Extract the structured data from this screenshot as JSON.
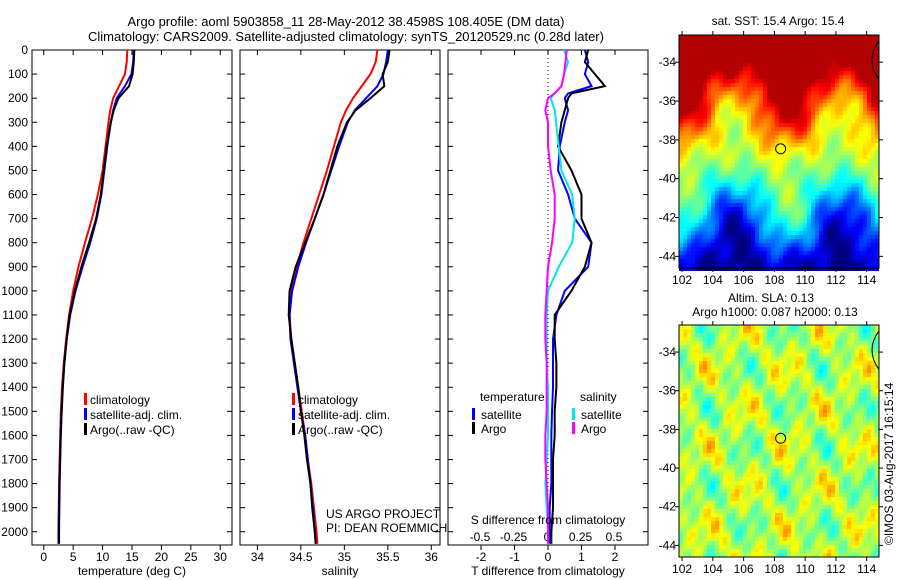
{
  "title": {
    "line1": "Argo profile: aoml 5903858_11 28-May-2012 38.4598S 108.405E (DM data)",
    "line2": "Climatology: CARS2009. Satellite-adjusted climatology: synTS_20120529.nc (0.28d later)"
  },
  "credits": {
    "line1": "US ARGO PROJECT",
    "line2": "PI: DEAN ROEMMICH",
    "stamp": "©IMOS 03-Aug-2017 16:15:14"
  },
  "colors": {
    "clim": "#ff0000",
    "sat": "#0000ff",
    "argo": "#000000",
    "sal_sat": "#00e5ee",
    "sal_argo": "#ff00ff"
  },
  "chart_data": [
    {
      "type": "line",
      "name": "temperature-profile",
      "xlabel": "temperature (deg C)",
      "xlim": [
        -2,
        32
      ],
      "xticks": [
        0,
        5,
        10,
        15,
        20,
        25,
        30
      ],
      "ylim": [
        0,
        2055
      ],
      "yticks": [
        0,
        100,
        200,
        300,
        400,
        500,
        600,
        700,
        800,
        900,
        1000,
        1100,
        1200,
        1300,
        1400,
        1500,
        1600,
        1700,
        1800,
        1900,
        2000
      ],
      "legend": [
        "climatology",
        "satellite-adj. clim.",
        "Argo(..raw -QC)"
      ],
      "depth": [
        0,
        50,
        100,
        150,
        200,
        250,
        300,
        400,
        500,
        600,
        700,
        800,
        900,
        1000,
        1100,
        1200,
        1300,
        1400,
        1500,
        1600,
        1700,
        1800,
        1900,
        2000,
        2050
      ],
      "series": [
        {
          "name": "climatology",
          "values": [
            14.2,
            14.1,
            13.8,
            12.8,
            11.8,
            11.3,
            11.0,
            10.5,
            10.0,
            9.2,
            8.2,
            7.0,
            5.9,
            5.0,
            4.3,
            3.8,
            3.4,
            3.1,
            2.9,
            2.8,
            2.7,
            2.6,
            2.55,
            2.5,
            2.5
          ]
        },
        {
          "name": "satellite-adj. clim.",
          "values": [
            15.3,
            15.2,
            14.9,
            13.8,
            12.4,
            11.8,
            11.4,
            10.8,
            10.3,
            9.8,
            9.0,
            7.9,
            6.6,
            5.4,
            4.5,
            3.9,
            3.5,
            3.2,
            3.0,
            2.85,
            2.75,
            2.65,
            2.6,
            2.5,
            2.5
          ]
        },
        {
          "name": "Argo(..raw -QC)",
          "values": [
            15.4,
            15.3,
            15.1,
            14.5,
            12.7,
            11.9,
            11.4,
            10.7,
            10.2,
            9.7,
            8.9,
            7.7,
            6.4,
            5.3,
            4.4,
            3.9,
            3.5,
            3.25,
            3.05,
            2.9,
            2.8,
            2.7,
            2.65,
            2.6,
            2.6
          ]
        }
      ]
    },
    {
      "type": "line",
      "name": "salinity-profile",
      "xlabel": "salinity",
      "xlim": [
        33.8,
        36.1
      ],
      "xticks": [
        34,
        34.5,
        35,
        35.5,
        36
      ],
      "ylim": [
        0,
        2055
      ],
      "legend": [
        "climatology",
        "satellite-adj. clim.",
        "Argo(..raw -QC)"
      ],
      "depth": [
        0,
        50,
        100,
        150,
        200,
        250,
        300,
        400,
        500,
        600,
        700,
        800,
        900,
        1000,
        1100,
        1200,
        1300,
        1400,
        1500,
        1600,
        1700,
        1800,
        1900,
        2000,
        2050
      ],
      "series": [
        {
          "name": "climatology",
          "values": [
            35.38,
            35.36,
            35.3,
            35.2,
            35.1,
            35.02,
            34.96,
            34.88,
            34.8,
            34.71,
            34.62,
            34.53,
            34.45,
            34.39,
            34.37,
            34.39,
            34.43,
            34.47,
            34.51,
            34.55,
            34.58,
            34.62,
            34.65,
            34.68,
            34.69
          ]
        },
        {
          "name": "satellite-adj. clim.",
          "values": [
            35.5,
            35.48,
            35.45,
            35.38,
            35.25,
            35.12,
            35.04,
            34.94,
            34.85,
            34.76,
            34.66,
            34.56,
            34.47,
            34.4,
            34.37,
            34.38,
            34.42,
            34.46,
            34.5,
            34.55,
            34.58,
            34.61,
            34.64,
            34.66,
            34.67
          ]
        },
        {
          "name": "Argo(..raw -QC)",
          "values": [
            35.52,
            35.5,
            35.44,
            35.46,
            35.3,
            35.13,
            35.03,
            34.92,
            34.84,
            34.76,
            34.66,
            34.55,
            34.44,
            34.37,
            34.36,
            34.39,
            34.43,
            34.47,
            34.5,
            34.54,
            34.57,
            34.61,
            34.63,
            34.66,
            34.67
          ]
        }
      ]
    },
    {
      "type": "line",
      "name": "difference-profile",
      "xlabel": "T difference from climatology",
      "xlabel2": "S difference from climatology",
      "xlim": [
        -3,
        3
      ],
      "xticks": [
        -2,
        -1,
        0,
        1,
        2
      ],
      "s_xticks": [
        -0.5,
        -0.25,
        0,
        0.25,
        0.5
      ],
      "s_xticklabels": [
        "-0.5",
        "-0.25",
        "0",
        "0.25",
        "0.5"
      ],
      "ylim": [
        0,
        2055
      ],
      "legend_temperature": {
        "title": "temperature",
        "items": [
          "satellite",
          "Argo"
        ]
      },
      "legend_salinity": {
        "title": "salinity",
        "items": [
          "satellite",
          "Argo"
        ]
      },
      "depth": [
        0,
        50,
        100,
        150,
        180,
        200,
        250,
        300,
        400,
        500,
        600,
        700,
        800,
        900,
        1000,
        1100,
        1200,
        1300,
        1400,
        1500,
        1600,
        1700,
        1800,
        1900,
        2000,
        2050
      ],
      "series": [
        {
          "name": "temperature satellite",
          "values": [
            1.1,
            1.2,
            1.1,
            1.3,
            0.6,
            0.5,
            0.6,
            0.5,
            0.35,
            0.3,
            0.6,
            0.8,
            1.3,
            1.2,
            0.5,
            0.25,
            0.15,
            0.15,
            0.15,
            0.12,
            0.1,
            0.1,
            0.1,
            0.05,
            0.05,
            0.05
          ]
        },
        {
          "name": "temperature Argo",
          "values": [
            1.2,
            1.1,
            1.4,
            1.7,
            0.7,
            0.6,
            0.5,
            0.4,
            0.3,
            0.7,
            1.0,
            1.0,
            1.3,
            1.1,
            0.7,
            0.2,
            0.2,
            0.25,
            0.25,
            0.2,
            0.2,
            0.15,
            0.15,
            0.15,
            0.1,
            0.1
          ]
        },
        {
          "name": "salinity satellite",
          "values": [
            0.12,
            0.15,
            0.12,
            0.1,
            0.05,
            0.02,
            0.05,
            0.06,
            0.08,
            0.1,
            0.18,
            0.2,
            0.18,
            0.08,
            0.0,
            -0.01,
            -0.01,
            -0.01,
            0.0,
            0.0,
            0.0,
            -0.01,
            -0.02,
            -0.01,
            0.0,
            0.0
          ]
        },
        {
          "name": "salinity Argo",
          "values": [
            0.14,
            0.13,
            0.12,
            0.1,
            0.05,
            0.0,
            -0.02,
            0.0,
            0.0,
            0.02,
            0.05,
            0.05,
            0.03,
            0.0,
            -0.01,
            -0.02,
            -0.02,
            -0.01,
            -0.01,
            -0.01,
            -0.02,
            -0.02,
            -0.01,
            0.0,
            0.0,
            0.0
          ]
        }
      ]
    },
    {
      "type": "heatmap",
      "name": "sst-map",
      "title": "sat. SST: 15.4 Argo: 15.4",
      "xlim": [
        101.8,
        114.8
      ],
      "ylim": [
        -44.6,
        -32.6
      ],
      "xticks": [
        102,
        104,
        106,
        108,
        110,
        112,
        114
      ],
      "yticks": [
        -34,
        -36,
        -38,
        -40,
        -42,
        -44
      ],
      "profile_location": {
        "lon": 108.405,
        "lat": -38.4598
      }
    },
    {
      "type": "heatmap",
      "name": "sla-map",
      "title": "Altim. SLA: 0.13",
      "subtitle": "Argo h1000: 0.087 h2000: 0.13",
      "xlim": [
        101.8,
        114.8
      ],
      "ylim": [
        -44.6,
        -32.6
      ],
      "xticks": [
        102,
        104,
        106,
        108,
        110,
        112,
        114
      ],
      "yticks": [
        -34,
        -36,
        -38,
        -40,
        -42,
        -44
      ],
      "profile_location": {
        "lon": 108.405,
        "lat": -38.4598
      }
    }
  ]
}
